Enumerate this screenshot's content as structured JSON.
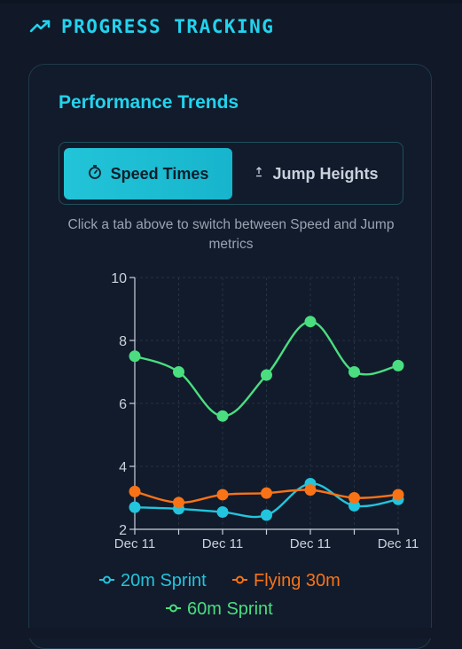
{
  "header": {
    "title": "PROGRESS TRACKING",
    "icon": "trending-up-icon"
  },
  "card": {
    "title": "Performance Trends"
  },
  "tabs": [
    {
      "label": "Speed Times",
      "icon": "stopwatch-icon",
      "active": true
    },
    {
      "label": "Jump Heights",
      "icon": "arrow-up-icon",
      "active": false
    }
  ],
  "hint": "Click a tab above to switch between Speed and Jump metrics",
  "colors": {
    "accent": "#22d3ee",
    "sprint20": "#22c5dd",
    "flying30": "#f97316",
    "sprint60": "#4ade80"
  },
  "chart_data": {
    "type": "line",
    "x": [
      "Dec 11",
      "",
      "Dec 11",
      "",
      "Dec 11",
      "",
      "Dec 11"
    ],
    "x_tick_labels": [
      "Dec 11",
      "Dec 11",
      "Dec 11",
      "Dec 11"
    ],
    "ylim": [
      2,
      10
    ],
    "y_ticks": [
      2,
      4,
      6,
      8,
      10
    ],
    "grid": true,
    "legend_position": "bottom",
    "series": [
      {
        "name": "20m Sprint",
        "color": "#22c5dd",
        "values": [
          2.7,
          2.65,
          2.55,
          2.45,
          3.45,
          2.75,
          2.95
        ]
      },
      {
        "name": "Flying 30m",
        "color": "#f97316",
        "values": [
          3.2,
          2.85,
          3.1,
          3.15,
          3.25,
          3.0,
          3.1
        ]
      },
      {
        "name": "60m Sprint",
        "color": "#4ade80",
        "values": [
          7.5,
          7.0,
          5.6,
          6.9,
          8.6,
          7.0,
          7.2
        ]
      }
    ]
  }
}
